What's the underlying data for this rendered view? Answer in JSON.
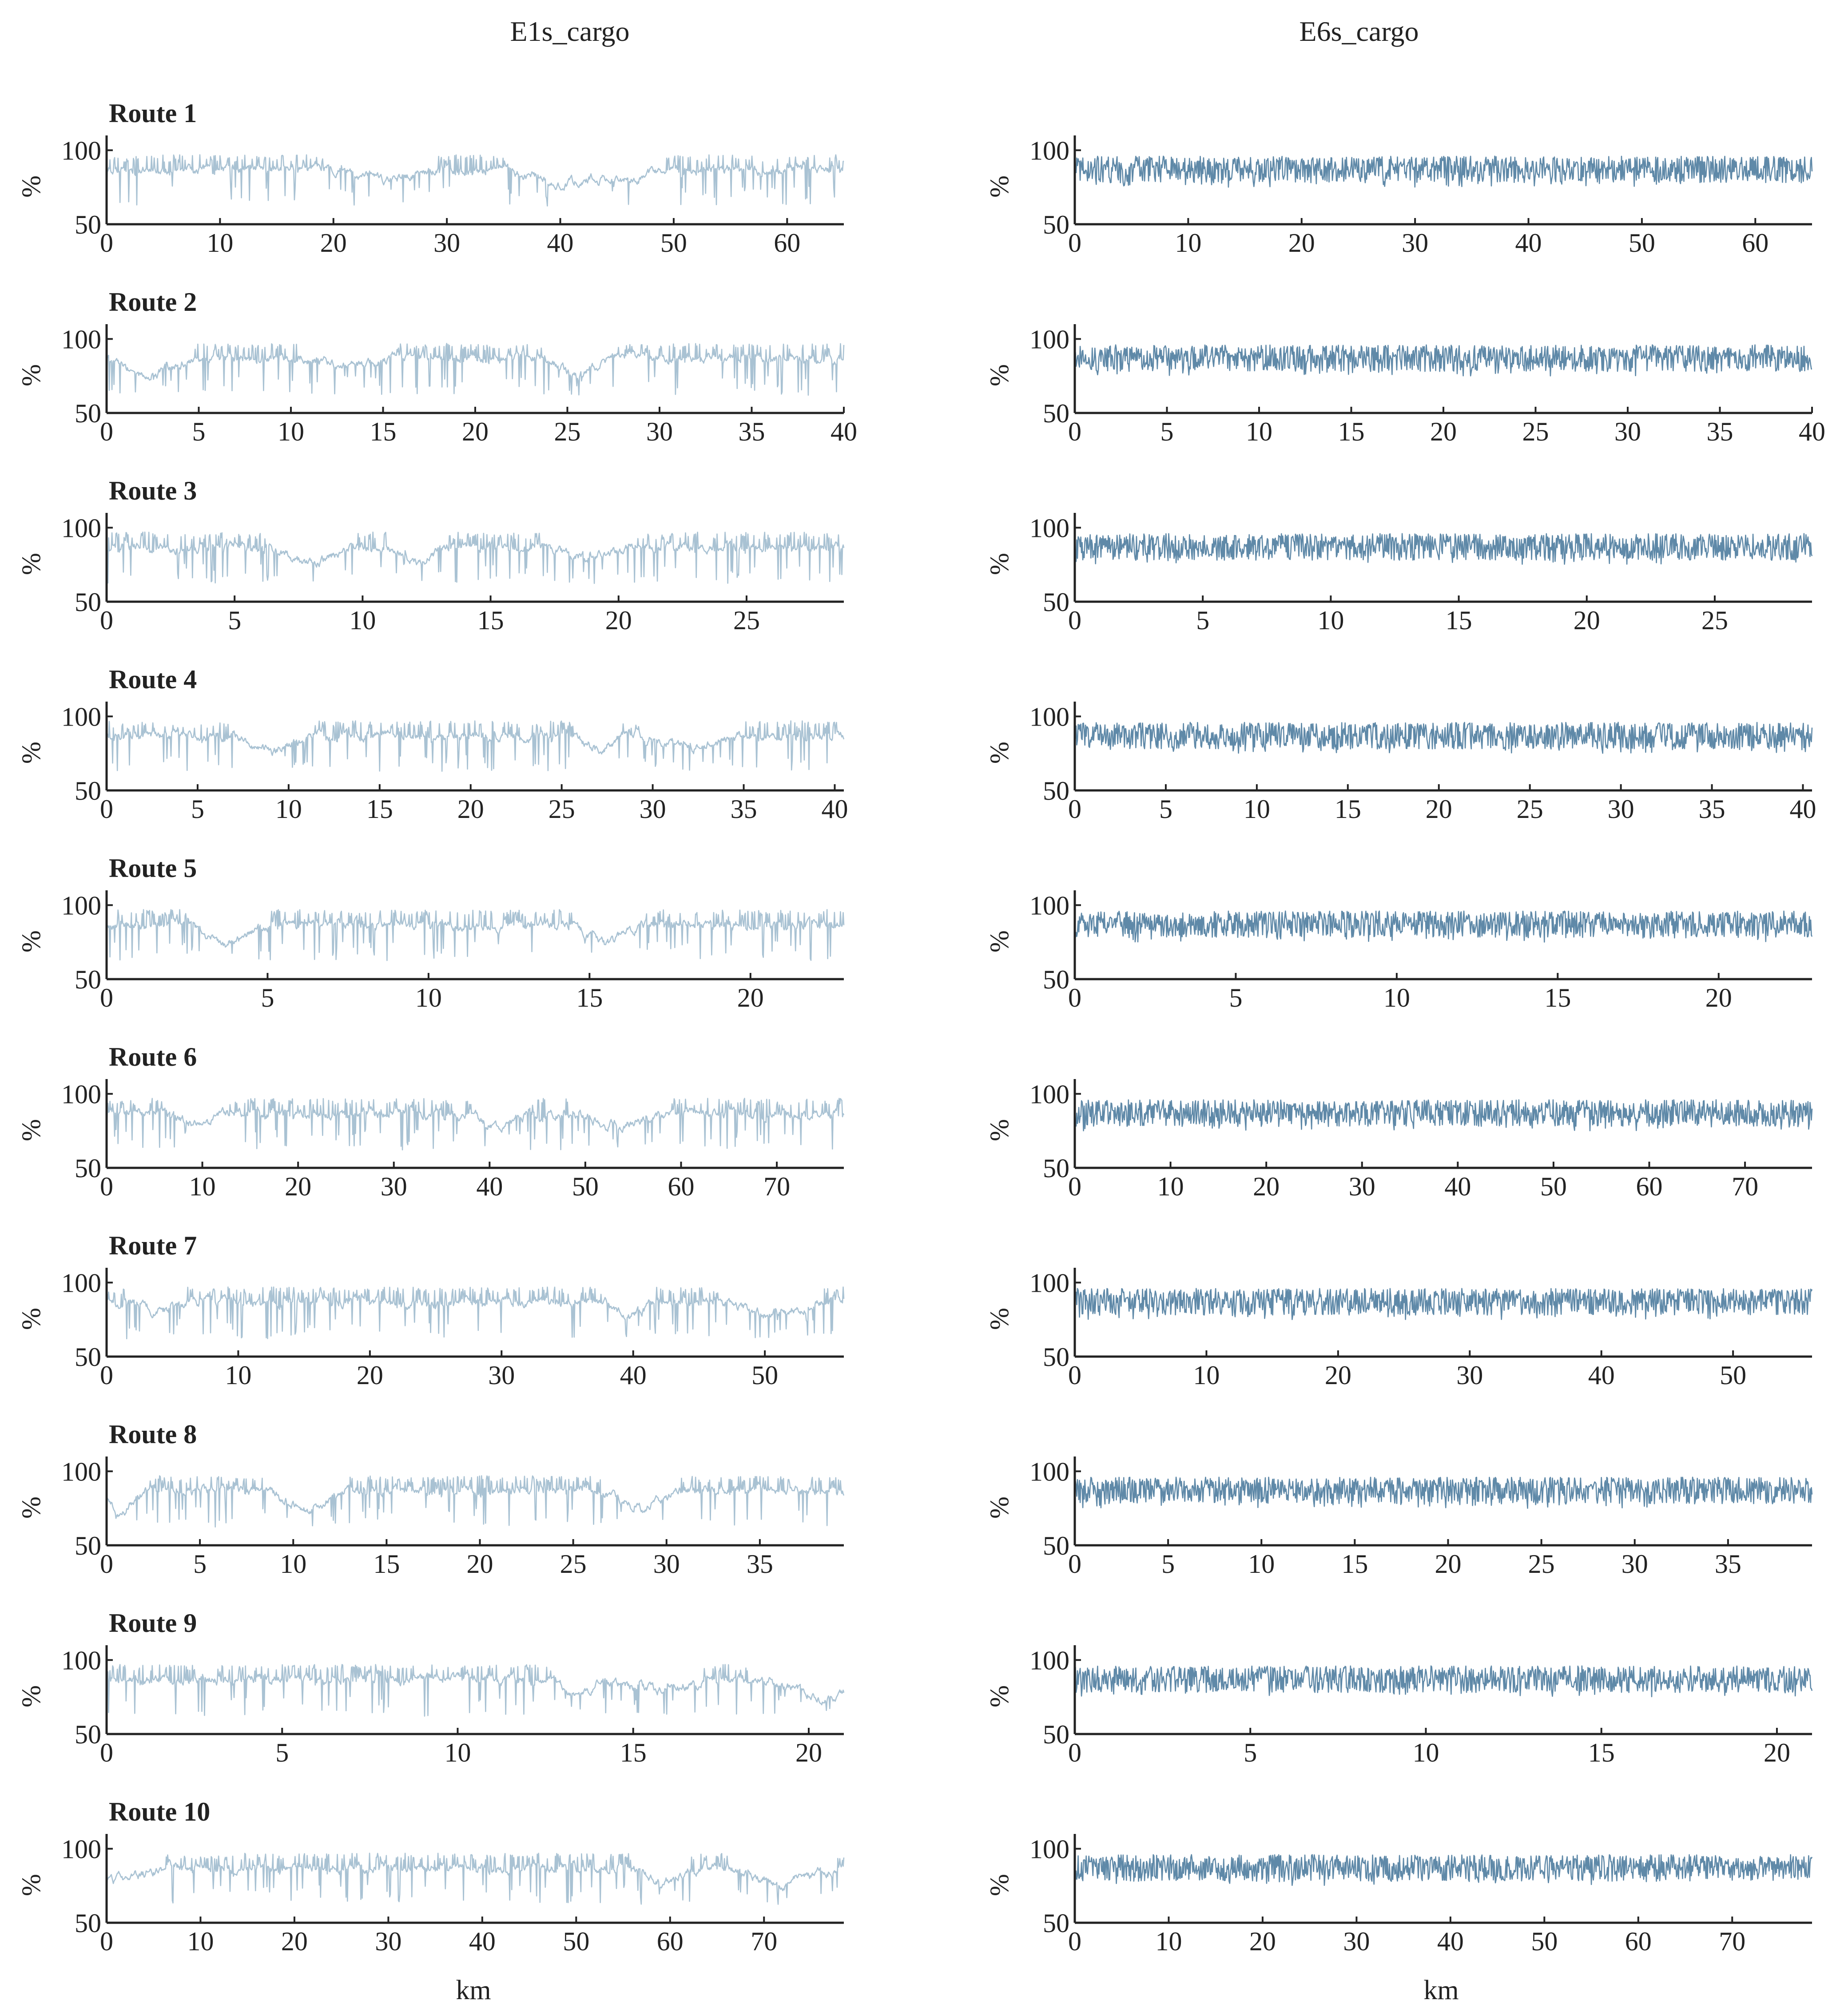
{
  "chart_data": {
    "type": "line",
    "columns": [
      {
        "title": "E1s_cargo",
        "color": "#a9c2d3"
      },
      {
        "title": "E6s_cargo",
        "color": "#5f89a8"
      }
    ],
    "ylabel": "%",
    "xlabel": "km",
    "ylim": [
      50,
      110
    ],
    "yticks": [
      50,
      100
    ],
    "routes": [
      {
        "title": "Route 1",
        "xmax": 65,
        "xticks": [
          0,
          10,
          20,
          30,
          40,
          50,
          60
        ]
      },
      {
        "title": "Route 2",
        "xmax": 40,
        "xticks": [
          0,
          5,
          10,
          15,
          20,
          25,
          30,
          35,
          40
        ]
      },
      {
        "title": "Route 3",
        "xmax": 28.8,
        "xticks": [
          0,
          5,
          10,
          15,
          20,
          25
        ]
      },
      {
        "title": "Route 4",
        "xmax": 40.5,
        "xticks": [
          0,
          5,
          10,
          15,
          20,
          25,
          30,
          35,
          40
        ]
      },
      {
        "title": "Route 5",
        "xmax": 22.9,
        "xticks": [
          0,
          5,
          10,
          15,
          20
        ]
      },
      {
        "title": "Route 6",
        "xmax": 77,
        "xticks": [
          0,
          10,
          20,
          30,
          40,
          50,
          60,
          70
        ]
      },
      {
        "title": "Route 7",
        "xmax": 56,
        "xticks": [
          0,
          10,
          20,
          30,
          40,
          50
        ]
      },
      {
        "title": "Route 8",
        "xmax": 39.5,
        "xticks": [
          0,
          5,
          10,
          15,
          20,
          25,
          30,
          35
        ]
      },
      {
        "title": "Route 9",
        "xmax": 21,
        "xticks": [
          0,
          5,
          10,
          15,
          20
        ]
      },
      {
        "title": "Route 10",
        "xmax": 78.5,
        "xticks": [
          0,
          10,
          20,
          30,
          40,
          50,
          60,
          70
        ]
      }
    ],
    "series_profile": {
      "E1s_cargo": {
        "base": 87,
        "min": 62,
        "max": 97,
        "sparse_dips": true
      },
      "E6s_cargo": {
        "base": 88,
        "min": 75,
        "max": 96,
        "dense": true
      }
    }
  }
}
